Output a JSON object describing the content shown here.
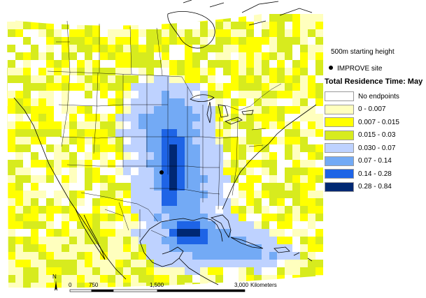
{
  "map": {
    "site_marker": "IMPROVE site",
    "scale": {
      "ticks": [
        "0",
        "750",
        "1,500",
        "3,000"
      ],
      "unit": "Kilometers"
    },
    "north_label": "N",
    "colors": {
      "water": "#ffffff",
      "borders": "#000000"
    }
  },
  "legend": {
    "start_height": "500m starting height",
    "site_label": "IMPROVE site",
    "title": "Total Residence Time: May",
    "classes": [
      {
        "label": "No endpoints",
        "color": "#ffffff"
      },
      {
        "label": "0 - 0.007",
        "color": "#ffffbe"
      },
      {
        "label": "0.007 - 0.015",
        "color": "#ffff00"
      },
      {
        "label": "0.015 - 0.03",
        "color": "#d7eb1e"
      },
      {
        "label": "0.030 - 0.07",
        "color": "#bed2ff"
      },
      {
        "label": "0.07 - 0.14",
        "color": "#73aaf5"
      },
      {
        "label": "0.14 - 0.28",
        "color": "#1e64e6"
      },
      {
        "label": "0.28 - 0.84",
        "color": "#002873"
      }
    ]
  }
}
